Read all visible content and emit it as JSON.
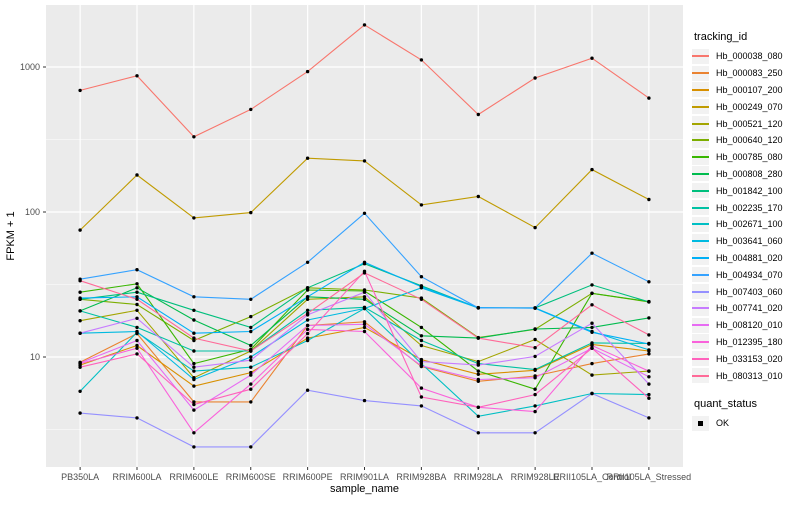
{
  "chart_data": {
    "type": "line",
    "title": "",
    "xlabel": "sample_name",
    "ylabel": "FPKM + 1",
    "y_scale": "log10",
    "ylim": [
      1.7,
      2700
    ],
    "yticks": [
      10,
      100,
      1000
    ],
    "minor_yticks": [
      3.162,
      31.62,
      316.2
    ],
    "grid": "on",
    "legend_position": "right",
    "panel_bg": "#ebebeb",
    "grid_color": "#ffffff",
    "tick_label_color": "#4d4d4d",
    "point_color": "#000000",
    "categories": [
      "PB350LA",
      "RRIM600LA",
      "RRIM600LE",
      "RRIM600SE",
      "RRIM600PE",
      "RRIM901LA",
      "RRIM928BA",
      "RRIM928LA",
      "RRIM928LE",
      "RRII105LA_Control",
      "RRII105LA_Stressed"
    ],
    "series": [
      {
        "name": "Hb_000038_080",
        "color": "#F8766D",
        "values": [
          690,
          870,
          330,
          510,
          930,
          1950,
          1120,
          470,
          840,
          1150,
          610
        ]
      },
      {
        "name": "Hb_000083_250",
        "color": "#EA8331",
        "values": [
          9.2,
          14.5,
          4.9,
          4.9,
          16.5,
          17.5,
          8.6,
          6.8,
          7.4,
          9.0,
          10.5
        ]
      },
      {
        "name": "Hb_000107_200",
        "color": "#D89000",
        "values": [
          8.8,
          12.0,
          6.3,
          7.8,
          13.5,
          16.0,
          9.6,
          7.6,
          8.1,
          12.2,
          11.0
        ]
      },
      {
        "name": "Hb_000249_070",
        "color": "#C09B00",
        "values": [
          75,
          180,
          91,
          99,
          235,
          225,
          112,
          128,
          78,
          196,
          122
        ]
      },
      {
        "name": "Hb_000521_120",
        "color": "#A3A500",
        "values": [
          17.8,
          21,
          7.2,
          11,
          25,
          26,
          12,
          9.3,
          13.2,
          7.5,
          8.0
        ]
      },
      {
        "name": "Hb_000640_120",
        "color": "#7CAE00",
        "values": [
          25,
          23,
          13,
          19,
          30,
          29,
          25.5,
          13.6,
          15.5,
          27.5,
          24
        ]
      },
      {
        "name": "Hb_000785_080",
        "color": "#39B600",
        "values": [
          28,
          32,
          9,
          11.3,
          29,
          28.5,
          16,
          8,
          6.0,
          27.5,
          24.1
        ]
      },
      {
        "name": "Hb_000808_280",
        "color": "#00BB4E",
        "values": [
          20.8,
          30,
          18,
          12,
          26,
          25,
          14,
          13.5,
          15.6,
          16,
          18.6
        ]
      },
      {
        "name": "Hb_001842_100",
        "color": "#00BF7D",
        "values": [
          25,
          28,
          21,
          16,
          30,
          44,
          31,
          21.8,
          21.8,
          31.4,
          24
        ]
      },
      {
        "name": "Hb_002235_170",
        "color": "#00C1A3",
        "values": [
          20.8,
          16,
          11,
          11,
          21,
          22,
          13,
          9,
          8.2,
          12.5,
          12.4
        ]
      },
      {
        "name": "Hb_002671_100",
        "color": "#00BFC4",
        "values": [
          5.8,
          14.8,
          8,
          8.5,
          13,
          21.6,
          9,
          3.9,
          4.6,
          5.6,
          5.5
        ]
      },
      {
        "name": "Hb_003641_060",
        "color": "#00BAE0",
        "values": [
          14.6,
          15,
          7,
          10,
          18,
          21.6,
          30,
          21.8,
          21.8,
          15,
          11.2
        ]
      },
      {
        "name": "Hb_004881_020",
        "color": "#00B0F6",
        "values": [
          25.5,
          26,
          14.6,
          15,
          26,
          45,
          30.5,
          21.9,
          21.7,
          14.8,
          12.3
        ]
      },
      {
        "name": "Hb_004934_070",
        "color": "#35A2FF",
        "values": [
          34.4,
          40,
          26,
          25,
          45,
          98,
          35.8,
          21.8,
          21.8,
          52,
          33
        ]
      },
      {
        "name": "Hb_007403_060",
        "color": "#9590FF",
        "values": [
          4.1,
          3.8,
          2.4,
          2.4,
          5.9,
          5.0,
          4.6,
          3.0,
          3.0,
          5.6,
          3.8
        ]
      },
      {
        "name": "Hb_007741_020",
        "color": "#C77CFF",
        "values": [
          14.6,
          18.5,
          8.5,
          9.5,
          19.5,
          28,
          9.3,
          8.8,
          10.1,
          17.1,
          6.5
        ]
      },
      {
        "name": "Hb_008120_010",
        "color": "#E76BF3",
        "values": [
          9.1,
          13,
          4.3,
          7.5,
          16.5,
          16.8,
          8.7,
          7.0,
          7.2,
          11.5,
          7.3
        ]
      },
      {
        "name": "Hb_012395_180",
        "color": "#FA62DB",
        "values": [
          9.0,
          11.5,
          3.0,
          6.5,
          15.5,
          15,
          6.1,
          4.5,
          4.2,
          12,
          8
        ]
      },
      {
        "name": "Hb_033153_020",
        "color": "#FF62BC",
        "values": [
          8.5,
          10.5,
          4.7,
          6.0,
          14.5,
          39,
          5.3,
          4.5,
          5.5,
          11.5,
          5.2
        ]
      },
      {
        "name": "Hb_080313_010",
        "color": "#FF6A98",
        "values": [
          33.6,
          25,
          13.5,
          11,
          20,
          38,
          25,
          13.5,
          11.6,
          22.9,
          14.2
        ]
      }
    ]
  },
  "legend": {
    "title": "tracking_id",
    "quant_title": "quant_status",
    "quant_value": "OK"
  },
  "axes": {
    "xlabel": "sample_name",
    "ylabel": "FPKM + 1"
  }
}
